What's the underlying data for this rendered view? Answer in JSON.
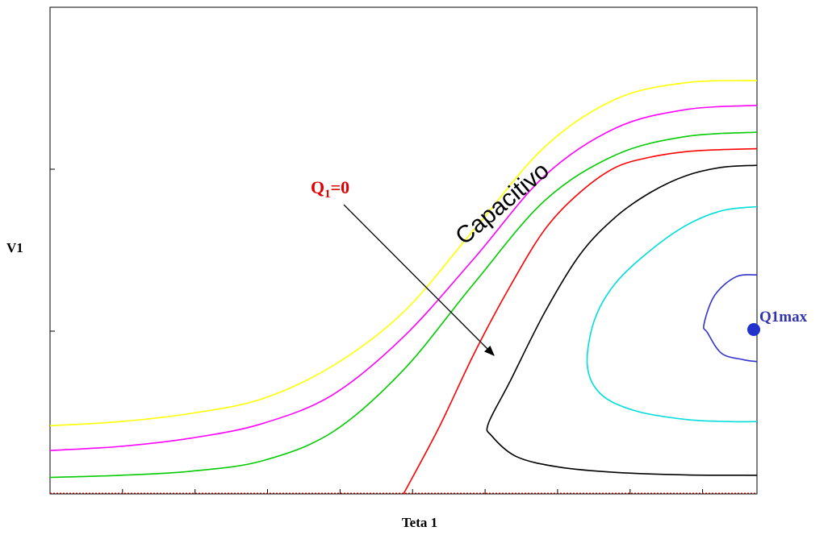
{
  "chart_data": {
    "type": "line",
    "title": "",
    "xlabel": "Teta 1",
    "ylabel": "V1",
    "xlim": [
      0,
      1
    ],
    "ylim": [
      0,
      1
    ],
    "grid": false,
    "tick_labels_shown": false,
    "series": [
      {
        "color": "#ffff00",
        "points": [
          [
            0,
            0.165
          ],
          [
            0.1,
            0.175
          ],
          [
            0.2,
            0.195
          ],
          [
            0.3,
            0.23
          ],
          [
            0.4,
            0.31
          ],
          [
            0.5,
            0.44
          ],
          [
            0.6,
            0.64
          ],
          [
            0.7,
            0.84
          ],
          [
            0.8,
            0.955
          ],
          [
            0.9,
            0.995
          ],
          [
            1,
            1.0
          ]
        ]
      },
      {
        "color": "#ff00ff",
        "points": [
          [
            0,
            0.105
          ],
          [
            0.1,
            0.115
          ],
          [
            0.2,
            0.135
          ],
          [
            0.3,
            0.17
          ],
          [
            0.4,
            0.24
          ],
          [
            0.5,
            0.38
          ],
          [
            0.6,
            0.57
          ],
          [
            0.7,
            0.77
          ],
          [
            0.8,
            0.885
          ],
          [
            0.9,
            0.93
          ],
          [
            1,
            0.94
          ]
        ]
      },
      {
        "color": "#00cc00",
        "points": [
          [
            0,
            0.04
          ],
          [
            0.1,
            0.045
          ],
          [
            0.2,
            0.055
          ],
          [
            0.3,
            0.08
          ],
          [
            0.4,
            0.15
          ],
          [
            0.5,
            0.3
          ],
          [
            0.6,
            0.51
          ],
          [
            0.7,
            0.71
          ],
          [
            0.8,
            0.82
          ],
          [
            0.9,
            0.865
          ],
          [
            1,
            0.875
          ]
        ]
      },
      {
        "color": "#ff0000",
        "points": [
          [
            0.5,
            0.0
          ],
          [
            0.55,
            0.16
          ],
          [
            0.6,
            0.34
          ],
          [
            0.65,
            0.5
          ],
          [
            0.7,
            0.64
          ],
          [
            0.75,
            0.73
          ],
          [
            0.8,
            0.79
          ],
          [
            0.85,
            0.815
          ],
          [
            0.9,
            0.828
          ],
          [
            0.95,
            0.833
          ],
          [
            1,
            0.835
          ]
        ]
      },
      {
        "color": "#000000",
        "points": [
          [
            1,
            0.795
          ],
          [
            0.95,
            0.79
          ],
          [
            0.9,
            0.77
          ],
          [
            0.85,
            0.73
          ],
          [
            0.8,
            0.67
          ],
          [
            0.75,
            0.58
          ],
          [
            0.7,
            0.44
          ],
          [
            0.65,
            0.27
          ],
          [
            0.62,
            0.17
          ],
          [
            0.625,
            0.14
          ],
          [
            0.66,
            0.09
          ],
          [
            0.72,
            0.065
          ],
          [
            0.8,
            0.052
          ],
          [
            0.9,
            0.046
          ],
          [
            1,
            0.045
          ]
        ]
      },
      {
        "color": "#00dddd",
        "points": [
          [
            1,
            0.695
          ],
          [
            0.95,
            0.685
          ],
          [
            0.9,
            0.65
          ],
          [
            0.85,
            0.59
          ],
          [
            0.8,
            0.51
          ],
          [
            0.77,
            0.42
          ],
          [
            0.76,
            0.31
          ],
          [
            0.78,
            0.24
          ],
          [
            0.83,
            0.2
          ],
          [
            0.9,
            0.18
          ],
          [
            0.96,
            0.175
          ],
          [
            1,
            0.175
          ]
        ]
      },
      {
        "color": "#3333cc",
        "points": [
          [
            1,
            0.53
          ],
          [
            0.97,
            0.525
          ],
          [
            0.94,
            0.48
          ],
          [
            0.925,
            0.41
          ],
          [
            0.93,
            0.39
          ],
          [
            0.95,
            0.34
          ],
          [
            0.98,
            0.325
          ],
          [
            1,
            0.32
          ]
        ]
      }
    ],
    "markers": [
      {
        "label": "Q1max",
        "x": 1.0,
        "y": 0.405,
        "color": "#2233cc"
      }
    ],
    "annotations": [
      {
        "text": "Capacitivo"
      },
      {
        "text": "Q",
        "subscript": "1",
        "suffix": "=0",
        "color": "#e00000",
        "arrow_to": [
          0.6,
          0.33
        ]
      }
    ]
  }
}
